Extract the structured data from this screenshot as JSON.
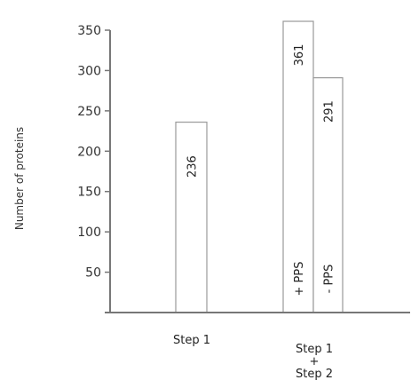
{
  "chart_data": {
    "type": "bar",
    "ylabel": "Number of proteins",
    "ylim": [
      0,
      350
    ],
    "yticks": [
      50,
      100,
      150,
      200,
      250,
      300,
      350
    ],
    "grid": false,
    "categories": [
      {
        "lines": [
          "Step 1"
        ]
      },
      {
        "lines": [
          "Step 1",
          "+",
          "Step 2"
        ]
      }
    ],
    "bars": [
      {
        "category_index": 0,
        "value": 236,
        "value_label": "236",
        "inner_label": ""
      },
      {
        "category_index": 1,
        "value": 361,
        "value_label": "361",
        "inner_label": "+ PPS"
      },
      {
        "category_index": 1,
        "value": 291,
        "value_label": "291",
        "inner_label": "- PPS"
      }
    ]
  },
  "colors": {
    "axis": "#777777",
    "bar_stroke": "#999999",
    "bar_fill": "#ffffff",
    "text": "#333333"
  }
}
